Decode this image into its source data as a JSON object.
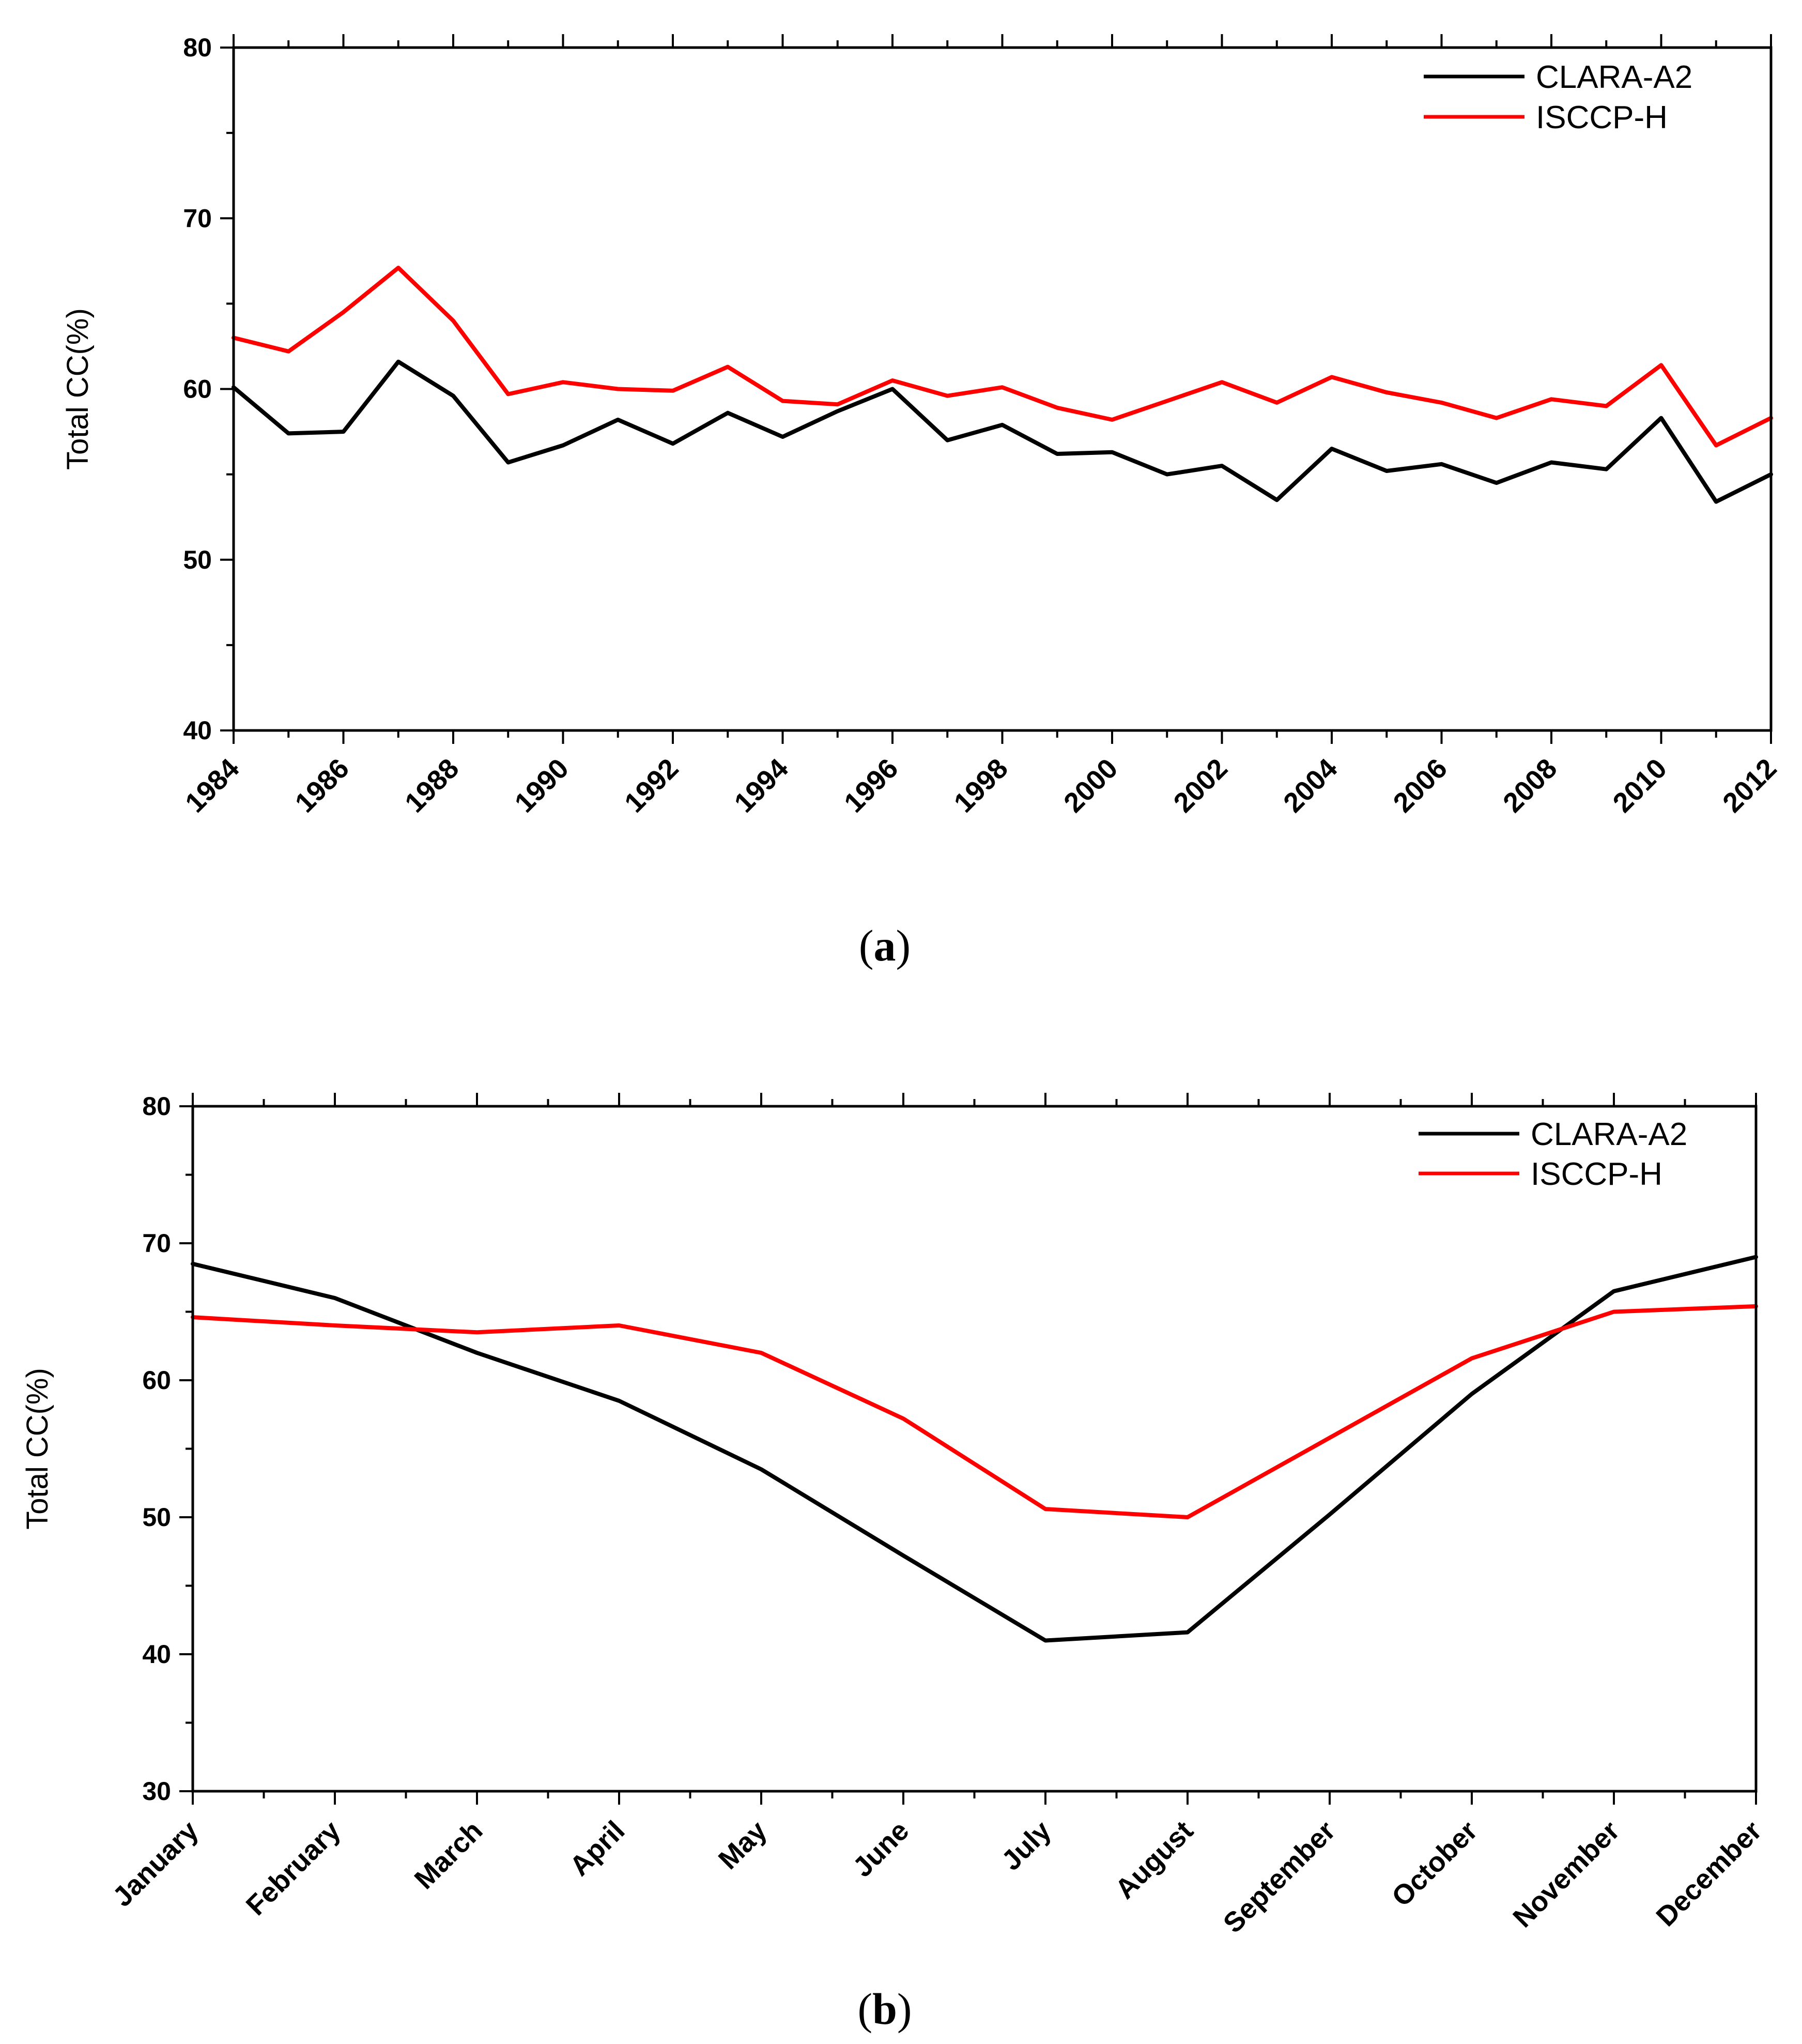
{
  "charts": [
    {
      "caption_letter": "a",
      "chart_data": {
        "type": "line",
        "title": "",
        "xlabel": "",
        "ylabel": "Total CC(%)",
        "xlim": [
          1984,
          2012
        ],
        "ylim": [
          40,
          80
        ],
        "yticks": [
          "40",
          "50",
          "60",
          "70",
          "80"
        ],
        "categories": [
          "1984",
          "1985",
          "1986",
          "1987",
          "1988",
          "1989",
          "1990",
          "1991",
          "1992",
          "1993",
          "1994",
          "1995",
          "1996",
          "1997",
          "1998",
          "1999",
          "2000",
          "2001",
          "2002",
          "2003",
          "2004",
          "2005",
          "2006",
          "2007",
          "2008",
          "2009",
          "2010",
          "2011",
          "2012"
        ],
        "tick_labels": [
          "1984",
          "1986",
          "1988",
          "1990",
          "1992",
          "1994",
          "1996",
          "1998",
          "2000",
          "2002",
          "2004",
          "2006",
          "2008",
          "2010",
          "2012"
        ],
        "legend_position": "top-right",
        "series": [
          {
            "name": "CLARA-A2",
            "color": "#000000",
            "values": [
              60.1,
              57.4,
              57.5,
              61.6,
              59.6,
              55.7,
              56.7,
              58.2,
              56.8,
              58.6,
              57.2,
              58.7,
              60.0,
              57.0,
              57.9,
              56.2,
              56.3,
              55.0,
              55.5,
              53.5,
              56.5,
              55.2,
              55.6,
              54.5,
              55.7,
              55.3,
              58.3,
              53.4,
              55.0
            ]
          },
          {
            "name": "ISCCP-H",
            "color": "#ff0000",
            "values": [
              63.0,
              62.2,
              64.5,
              67.1,
              64.0,
              59.7,
              60.4,
              60.0,
              59.9,
              61.3,
              59.3,
              59.1,
              60.5,
              59.6,
              60.1,
              58.9,
              58.2,
              59.3,
              60.4,
              59.2,
              60.7,
              59.8,
              59.2,
              58.3,
              59.4,
              59.0,
              61.4,
              56.7,
              58.3
            ]
          }
        ]
      }
    },
    {
      "caption_letter": "b",
      "chart_data": {
        "type": "line",
        "title": "",
        "xlabel": "",
        "ylabel": "Total CC(%)",
        "ylim": [
          30,
          80
        ],
        "yticks": [
          "30",
          "40",
          "50",
          "60",
          "70",
          "80"
        ],
        "categories": [
          "January",
          "February",
          "March",
          "April",
          "May",
          "June",
          "July",
          "August",
          "September",
          "October",
          "November",
          "December"
        ],
        "legend_position": "top-right",
        "series": [
          {
            "name": "CLARA-A2",
            "color": "#000000",
            "values": [
              68.5,
              66.0,
              62.0,
              58.5,
              53.5,
              47.2,
              41.0,
              41.6,
              50.2,
              59.0,
              66.5,
              69.0
            ]
          },
          {
            "name": "ISCCP-H",
            "color": "#ff0000",
            "values": [
              64.6,
              64.0,
              63.5,
              64.0,
              62.0,
              57.2,
              50.6,
              50.0,
              55.8,
              61.6,
              65.0,
              65.4
            ]
          }
        ]
      }
    }
  ]
}
